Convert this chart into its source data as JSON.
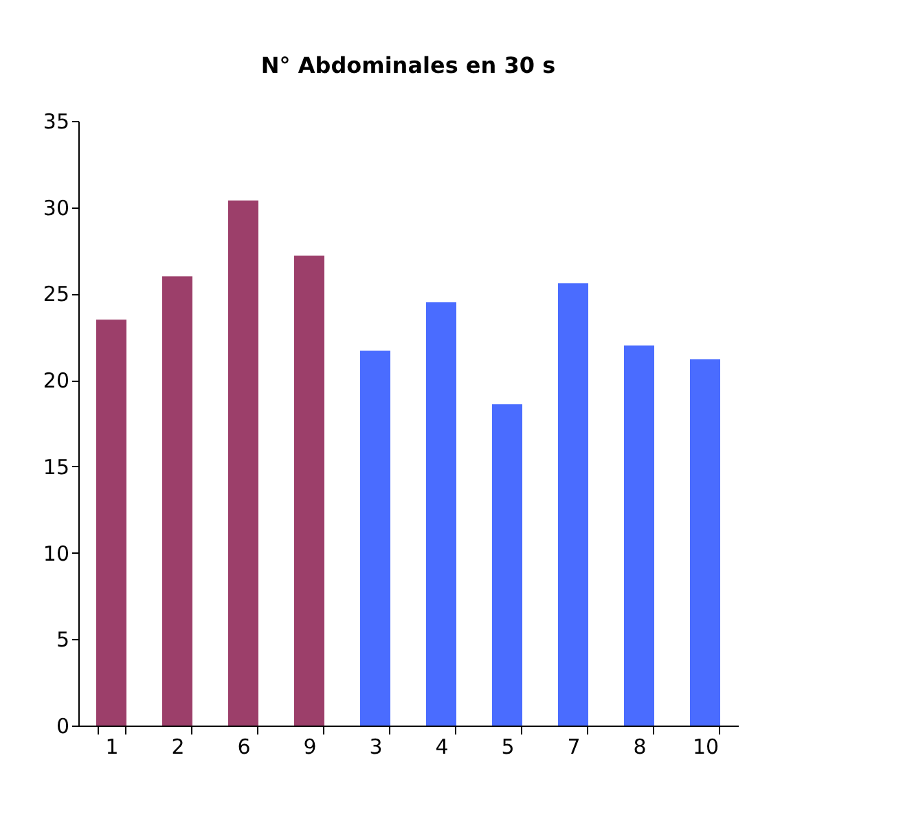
{
  "chart_data": {
    "type": "bar",
    "title": "N° Abdominales en 30 s",
    "categories": [
      "1",
      "2",
      "6",
      "9",
      "3",
      "4",
      "5",
      "7",
      "8",
      "10"
    ],
    "values": [
      23.5,
      26.0,
      30.4,
      27.2,
      21.7,
      24.5,
      18.6,
      25.6,
      22.0,
      21.2
    ],
    "colors": [
      "#9c3f6a",
      "#9c3f6a",
      "#9c3f6a",
      "#9c3f6a",
      "#4a6cff",
      "#4a6cff",
      "#4a6cff",
      "#4a6cff",
      "#4a6cff",
      "#4a6cff"
    ],
    "ylim": [
      0,
      35
    ],
    "yticks": [
      0,
      5,
      10,
      15,
      20,
      25,
      30,
      35
    ],
    "grid": false
  }
}
